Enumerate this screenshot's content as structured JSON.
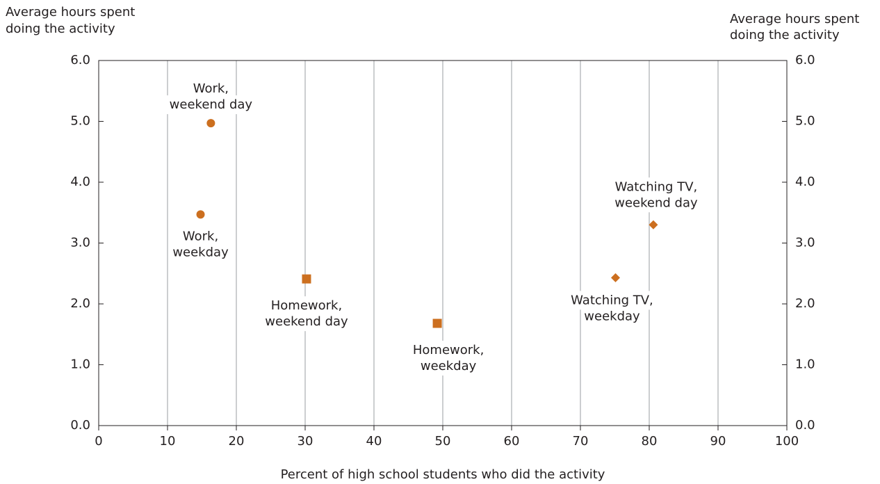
{
  "chart_data": {
    "type": "scatter",
    "y_label": [
      "Average hours spent",
      "doing the activity"
    ],
    "y2_label": [
      "Average hours spent",
      "doing the activity"
    ],
    "x_label": "Percent of high school students who did the activity",
    "color": "#cc6f1f",
    "grid": true,
    "xlim": [
      0,
      100
    ],
    "xticks": [
      0,
      10,
      20,
      30,
      40,
      50,
      60,
      70,
      80,
      90,
      100
    ],
    "ylim": [
      0,
      6
    ],
    "yticks": [
      {
        "value": 0,
        "label": "0.0"
      },
      {
        "value": 1,
        "label": "1.0"
      },
      {
        "value": 2,
        "label": "2.0"
      },
      {
        "value": 3,
        "label": "3.0"
      },
      {
        "value": 4,
        "label": "4.0"
      },
      {
        "value": 5,
        "label": "5.0"
      },
      {
        "value": 6,
        "label": "6.0"
      }
    ],
    "y2lim": [
      0,
      6
    ],
    "y2ticks": [
      {
        "value": 0,
        "label": "0.0"
      },
      {
        "value": 1,
        "label": "1.0"
      },
      {
        "value": 2,
        "label": "2.0"
      },
      {
        "value": 3,
        "label": "3.0"
      },
      {
        "value": 4,
        "label": "4.0"
      },
      {
        "value": 5,
        "label": "5.0"
      },
      {
        "value": 6,
        "label": "6.0"
      }
    ],
    "points": [
      {
        "label": [
          "Work,",
          "weekend day"
        ],
        "x": 16.3,
        "y": 4.97,
        "marker": "circle"
      },
      {
        "label": [
          "Work,",
          "weekday"
        ],
        "x": 14.8,
        "y": 3.47,
        "marker": "circle"
      },
      {
        "label": [
          "Homework,",
          "weekend day"
        ],
        "x": 30.2,
        "y": 2.41,
        "marker": "square"
      },
      {
        "label": [
          "Homework,",
          "weekday"
        ],
        "x": 49.2,
        "y": 1.68,
        "marker": "square"
      },
      {
        "label": [
          "Watching TV,",
          "weekday"
        ],
        "x": 75.1,
        "y": 2.43,
        "marker": "diamond"
      },
      {
        "label": [
          "Watching TV,",
          "weekend day"
        ],
        "x": 80.6,
        "y": 3.3,
        "marker": "diamond"
      }
    ]
  }
}
